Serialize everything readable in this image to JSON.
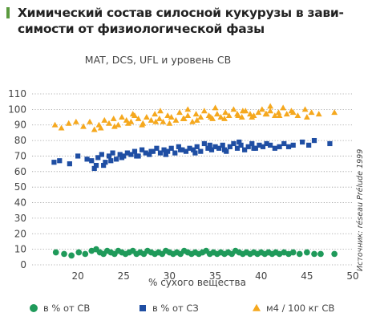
{
  "heading": {
    "line1": "Химический состав силосной кукурузы в зави-",
    "line2": "симости от физиологической фазы"
  },
  "source_note": "Источник: réseau Prélude 1999",
  "colors": {
    "orange": "#f5a81e",
    "blue": "#1f4ea3",
    "green": "#1f9a5a",
    "heading_marker": "#5a9a3e",
    "grid": "#9a9a9a"
  },
  "chart_data": {
    "type": "scatter",
    "title": "MAT, DCS, UFL  и уровень СВ",
    "xlabel": "% сухого вещества",
    "ylabel": "",
    "xlim": [
      15,
      50
    ],
    "ylim": [
      0,
      110
    ],
    "xticks": [
      20,
      25,
      30,
      35,
      40,
      45,
      50
    ],
    "yticks": [
      0,
      10,
      20,
      30,
      40,
      50,
      60,
      70,
      80,
      90,
      100,
      110
    ],
    "grid": true,
    "legend_position": "bottom",
    "series": [
      {
        "name": "м4 / 100 кг СВ",
        "marker": "triangle",
        "color": "#f5a81e",
        "x": [
          17.5,
          18.2,
          19.0,
          19.8,
          20.6,
          21.3,
          21.8,
          22.3,
          22.9,
          23.4,
          23.9,
          24.4,
          24.8,
          25.3,
          25.8,
          26.2,
          26.6,
          27.1,
          27.5,
          28.0,
          28.4,
          28.9,
          29.3,
          29.8,
          30.2,
          30.7,
          31.1,
          31.6,
          32.0,
          32.5,
          32.9,
          33.4,
          33.8,
          34.3,
          34.7,
          35.2,
          35.6,
          36.1,
          36.5,
          37.0,
          37.4,
          37.9,
          38.3,
          38.8,
          39.2,
          39.7,
          40.1,
          40.6,
          41.0,
          41.5,
          41.9,
          42.4,
          42.8,
          43.3,
          44.0,
          44.8,
          45.5,
          46.3,
          48.0,
          22.5,
          24.0,
          25.5,
          27.0,
          28.5,
          30.0,
          31.5,
          33.0,
          34.5,
          36.0,
          37.5,
          39.0,
          40.5,
          42.0,
          43.5,
          45.0,
          26.0,
          29.0,
          32.0,
          35.0,
          38.0,
          41.0
        ],
        "y": [
          90,
          88,
          91,
          92,
          89,
          92,
          87,
          90,
          93,
          91,
          94,
          90,
          95,
          93,
          92,
          96,
          94,
          91,
          95,
          93,
          97,
          94,
          92,
          96,
          95,
          93,
          98,
          94,
          96,
          92,
          97,
          95,
          99,
          96,
          94,
          97,
          95,
          98,
          96,
          100,
          97,
          95,
          99,
          97,
          96,
          98,
          100,
          97,
          99,
          96,
          98,
          101,
          97,
          99,
          96,
          100,
          98,
          97,
          98,
          88,
          89,
          91,
          90,
          92,
          91,
          94,
          93,
          95,
          94,
          96,
          95,
          97,
          96,
          98,
          95,
          97,
          99,
          100,
          101,
          99,
          102
        ]
      },
      {
        "name": "в % от СЗ",
        "marker": "square",
        "color": "#1f4ea3",
        "x": [
          17.4,
          18.0,
          19.1,
          20.0,
          21.0,
          21.5,
          22.0,
          22.2,
          22.6,
          23.0,
          23.4,
          23.8,
          24.2,
          24.6,
          25.0,
          25.4,
          25.8,
          26.2,
          26.6,
          27.0,
          27.4,
          27.8,
          28.2,
          28.6,
          29.0,
          29.4,
          29.8,
          30.2,
          30.6,
          31.0,
          31.4,
          31.8,
          32.2,
          32.6,
          33.0,
          33.4,
          33.8,
          34.2,
          34.6,
          35.0,
          35.4,
          35.8,
          36.2,
          36.6,
          37.0,
          37.4,
          37.8,
          38.2,
          38.6,
          39.0,
          39.4,
          39.8,
          40.2,
          40.6,
          41.0,
          41.5,
          42.0,
          42.5,
          43.0,
          43.5,
          44.5,
          45.2,
          45.8,
          47.5,
          21.8,
          22.8,
          23.6,
          24.8,
          26.4,
          28.0,
          29.6,
          31.2,
          32.8,
          34.4,
          36.0,
          37.6,
          39.2
        ],
        "y": [
          66,
          67,
          65,
          70,
          68,
          67,
          64,
          69,
          71,
          66,
          70,
          72,
          68,
          71,
          70,
          72,
          71,
          73,
          70,
          74,
          72,
          71,
          73,
          75,
          72,
          74,
          73,
          75,
          72,
          76,
          74,
          73,
          75,
          74,
          76,
          73,
          78,
          75,
          74,
          76,
          75,
          77,
          73,
          76,
          78,
          75,
          77,
          74,
          76,
          78,
          75,
          77,
          76,
          78,
          77,
          75,
          76,
          78,
          76,
          77,
          79,
          77,
          80,
          78,
          62,
          64,
          67,
          69,
          70,
          73,
          71,
          74,
          72,
          77,
          74,
          79,
          75
        ]
      },
      {
        "name": "в % от СВ",
        "marker": "circle",
        "color": "#1f9a5a",
        "x": [
          17.6,
          18.5,
          19.3,
          20.1,
          20.8,
          21.5,
          22.0,
          22.4,
          22.8,
          23.2,
          23.6,
          24.0,
          24.4,
          24.8,
          25.2,
          25.6,
          26.0,
          26.4,
          26.8,
          27.2,
          27.6,
          28.0,
          28.4,
          28.8,
          29.2,
          29.6,
          30.0,
          30.4,
          30.8,
          31.2,
          31.6,
          32.0,
          32.4,
          32.8,
          33.2,
          33.6,
          34.0,
          34.4,
          34.8,
          35.2,
          35.6,
          36.0,
          36.4,
          36.8,
          37.2,
          37.6,
          38.0,
          38.4,
          38.8,
          39.2,
          39.6,
          40.0,
          40.4,
          40.8,
          41.2,
          41.6,
          42.0,
          42.5,
          43.0,
          43.5,
          44.2,
          45.0,
          45.8,
          46.5,
          48.0
        ],
        "y": [
          8,
          7,
          6,
          8,
          7,
          9,
          10,
          8,
          7,
          9,
          8,
          7,
          9,
          8,
          7,
          8,
          9,
          7,
          8,
          7,
          9,
          8,
          7,
          8,
          7,
          9,
          8,
          7,
          8,
          7,
          9,
          8,
          7,
          8,
          7,
          8,
          9,
          7,
          8,
          7,
          8,
          7,
          8,
          7,
          9,
          8,
          7,
          8,
          7,
          8,
          7,
          8,
          7,
          8,
          7,
          8,
          7,
          8,
          7,
          8,
          7,
          8,
          7,
          7,
          7
        ]
      }
    ],
    "legend": [
      {
        "label": "в % от СВ",
        "marker": "circle",
        "color": "#1f9a5a"
      },
      {
        "label": "в % от СЗ",
        "marker": "square",
        "color": "#1f4ea3"
      },
      {
        "label": "м4 / 100 кг СВ",
        "marker": "triangle",
        "color": "#f5a81e"
      }
    ]
  }
}
